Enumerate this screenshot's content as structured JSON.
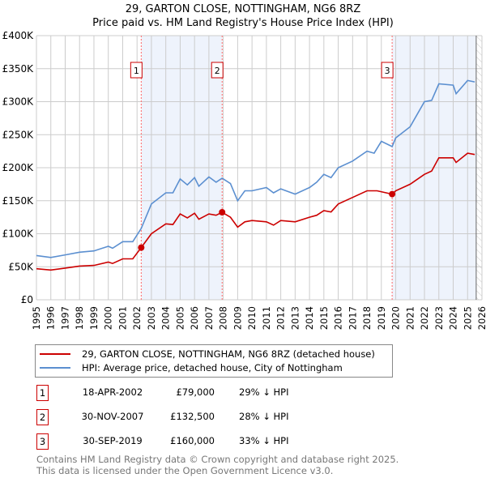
{
  "title": "29, GARTON CLOSE, NOTTINGHAM, NG6 8RZ",
  "subtitle": "Price paid vs. HM Land Registry's House Price Index (HPI)",
  "chart_data": {
    "type": "line",
    "xlim": [
      1995,
      2026
    ],
    "ylim": [
      0,
      400000
    ],
    "y_ticks": [
      0,
      50000,
      100000,
      150000,
      200000,
      250000,
      300000,
      350000,
      400000
    ],
    "y_tick_labels": [
      "£0",
      "£50K",
      "£100K",
      "£150K",
      "£200K",
      "£250K",
      "£300K",
      "£350K",
      "£400K"
    ],
    "x_ticks": [
      1995,
      1996,
      1997,
      1998,
      1999,
      2000,
      2001,
      2002,
      2003,
      2004,
      2005,
      2006,
      2007,
      2008,
      2009,
      2010,
      2011,
      2012,
      2013,
      2014,
      2015,
      2016,
      2017,
      2018,
      2019,
      2020,
      2021,
      2022,
      2023,
      2024,
      2025,
      2026
    ],
    "shaded_ranges": [
      [
        2002.29,
        2007.92
      ],
      [
        2019.75,
        2025.6
      ]
    ],
    "data_end": 2025.6,
    "series": [
      {
        "name": "29, GARTON CLOSE, NOTTINGHAM, NG6 8RZ (detached house)",
        "color": "#cc0000",
        "x": [
          1995,
          1996,
          1997,
          1998,
          1999,
          2000,
          2000.3,
          2001,
          2001.7,
          2002.29,
          2003,
          2004,
          2004.5,
          2005,
          2005.5,
          2006,
          2006.3,
          2007,
          2007.5,
          2007.92,
          2008.5,
          2009,
          2009.5,
          2010,
          2011,
          2011.5,
          2012,
          2013,
          2014,
          2014.5,
          2015,
          2015.5,
          2016,
          2017,
          2018,
          2018.7,
          2019.75,
          2020,
          2021,
          2022,
          2022.5,
          2023,
          2024,
          2024.2,
          2025,
          2025.5
        ],
        "y": [
          47000,
          45000,
          48000,
          51000,
          52000,
          57000,
          55000,
          62000,
          62000,
          79000,
          100000,
          115000,
          114000,
          130000,
          124000,
          131000,
          122000,
          130000,
          128000,
          132500,
          125000,
          110000,
          118000,
          120000,
          118000,
          113000,
          120000,
          118000,
          125000,
          128000,
          135000,
          133000,
          145000,
          155000,
          165000,
          165000,
          160000,
          165000,
          175000,
          190000,
          195000,
          215000,
          215000,
          208000,
          222000,
          220000
        ]
      },
      {
        "name": "HPI: Average price, detached house, City of Nottingham",
        "color": "#5b8fd0",
        "x": [
          1995,
          1996,
          1997,
          1998,
          1999,
          2000,
          2000.3,
          2001,
          2001.7,
          2002.29,
          2003,
          2004,
          2004.5,
          2005,
          2005.5,
          2006,
          2006.3,
          2007,
          2007.5,
          2007.92,
          2008.5,
          2009,
          2009.5,
          2010,
          2011,
          2011.5,
          2012,
          2013,
          2014,
          2014.5,
          2015,
          2015.5,
          2016,
          2017,
          2018,
          2018.5,
          2019,
          2019.75,
          2020,
          2021,
          2022,
          2022.5,
          2023,
          2024,
          2024.2,
          2025,
          2025.5
        ],
        "y": [
          67000,
          64000,
          68000,
          72000,
          74000,
          81000,
          78000,
          88000,
          88000,
          108000,
          145000,
          162000,
          162000,
          183000,
          174000,
          185000,
          172000,
          186000,
          178000,
          184000,
          176000,
          150000,
          165000,
          165000,
          170000,
          162000,
          168000,
          160000,
          170000,
          178000,
          190000,
          185000,
          200000,
          210000,
          225000,
          222000,
          240000,
          232000,
          245000,
          262000,
          300000,
          302000,
          327000,
          325000,
          312000,
          332000,
          330000
        ]
      }
    ],
    "markers": [
      {
        "label": "1",
        "x": 2002.29,
        "y": 79000
      },
      {
        "label": "2",
        "x": 2007.92,
        "y": 132500
      },
      {
        "label": "3",
        "x": 2019.75,
        "y": 160000
      }
    ]
  },
  "legend": {
    "items": [
      "29, GARTON CLOSE, NOTTINGHAM, NG6 8RZ (detached house)",
      "HPI: Average price, detached house, City of Nottingham"
    ]
  },
  "transactions": [
    {
      "num": "1",
      "date": "18-APR-2002",
      "price": "£79,000",
      "hpi": "29% ↓ HPI"
    },
    {
      "num": "2",
      "date": "30-NOV-2007",
      "price": "£132,500",
      "hpi": "28% ↓ HPI"
    },
    {
      "num": "3",
      "date": "30-SEP-2019",
      "price": "£160,000",
      "hpi": "33% ↓ HPI"
    }
  ],
  "footer": [
    "Contains HM Land Registry data © Crown copyright and database right 2025.",
    "This data is licensed under the Open Government Licence v3.0."
  ]
}
